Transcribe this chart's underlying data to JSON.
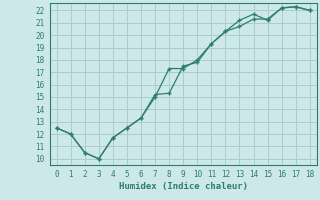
{
  "title": "",
  "xlabel": "Humidex (Indice chaleur)",
  "bg_color": "#cce8e8",
  "grid_color": "#aacccc",
  "line_color": "#2e7d6e",
  "xlim": [
    -0.5,
    18.5
  ],
  "ylim": [
    9.5,
    22.6
  ],
  "xticks": [
    0,
    1,
    2,
    3,
    4,
    5,
    6,
    7,
    8,
    9,
    10,
    11,
    12,
    13,
    14,
    15,
    16,
    17,
    18
  ],
  "yticks": [
    10,
    11,
    12,
    13,
    14,
    15,
    16,
    17,
    18,
    19,
    20,
    21,
    22
  ],
  "line1_x": [
    0,
    1,
    2,
    3,
    4,
    5,
    6,
    7,
    8,
    9,
    10,
    11,
    12,
    13,
    14,
    15,
    16,
    17,
    18
  ],
  "line1_y": [
    12.5,
    12.0,
    10.5,
    10.0,
    11.7,
    12.5,
    13.3,
    15.0,
    17.3,
    17.3,
    18.0,
    19.3,
    20.3,
    21.2,
    21.7,
    21.2,
    22.2,
    22.3,
    22.0
  ],
  "line2_x": [
    0,
    1,
    2,
    3,
    4,
    5,
    6,
    7,
    8,
    9,
    10,
    11,
    12,
    13,
    14,
    15,
    16,
    17,
    18
  ],
  "line2_y": [
    12.5,
    12.0,
    10.5,
    10.0,
    11.7,
    12.5,
    13.3,
    15.2,
    15.3,
    17.5,
    17.8,
    19.3,
    20.3,
    20.7,
    21.3,
    21.3,
    22.2,
    22.3,
    22.0
  ]
}
